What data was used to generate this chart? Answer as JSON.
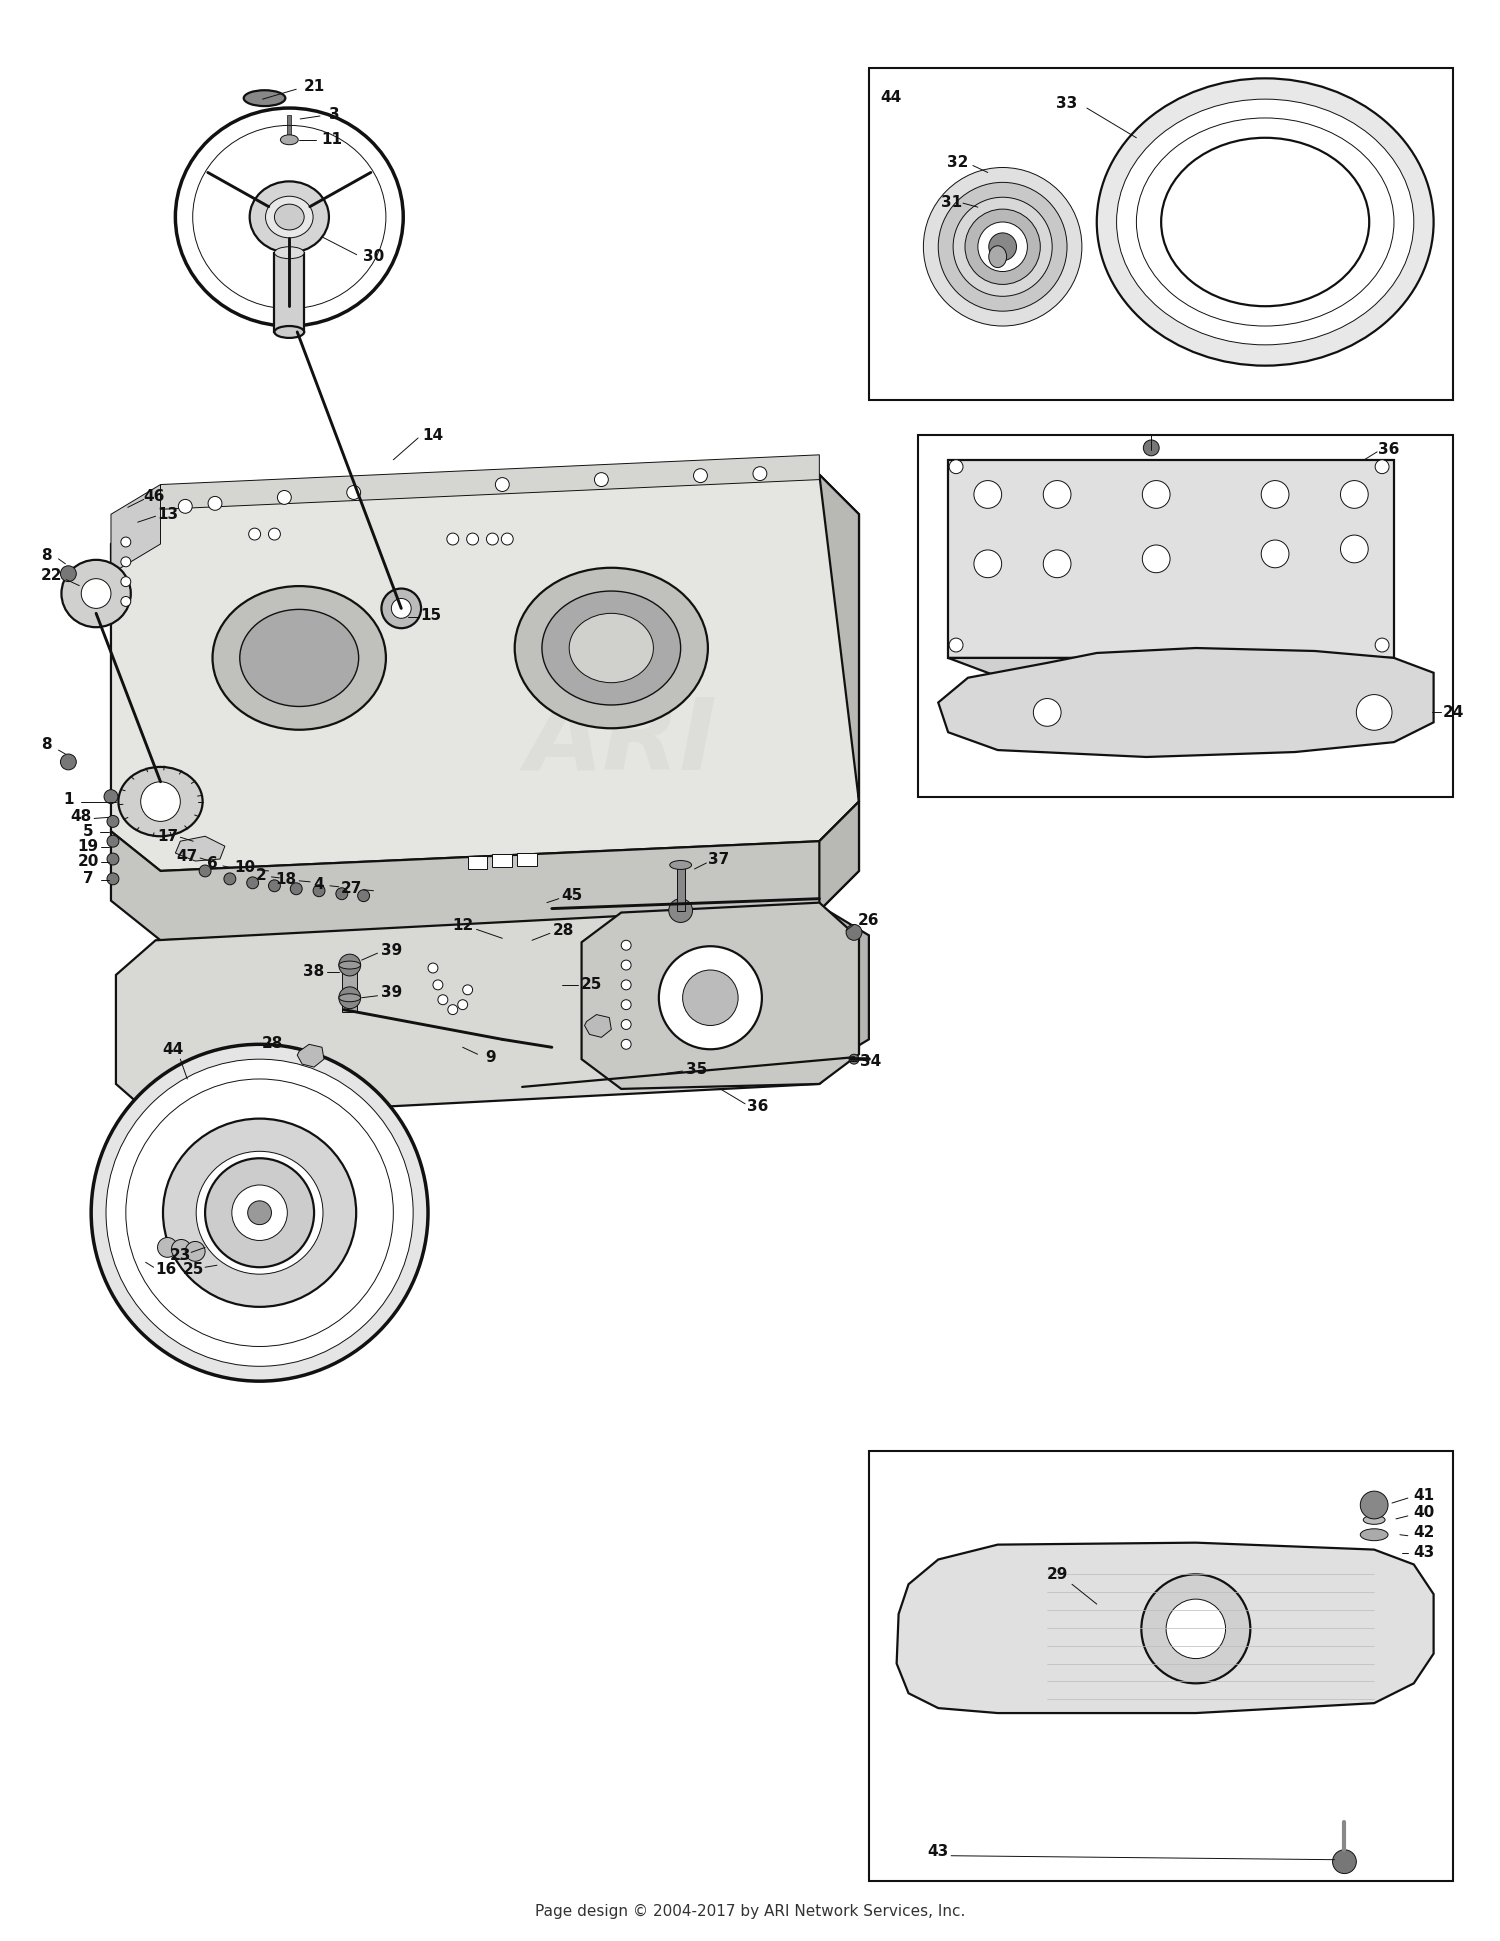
{
  "footer": "Page design © 2004-2017 by ARI Network Services, Inc.",
  "bg": "#ffffff",
  "lc": "#111111",
  "fig_width": 15.0,
  "fig_height": 19.41,
  "dpi": 100
}
